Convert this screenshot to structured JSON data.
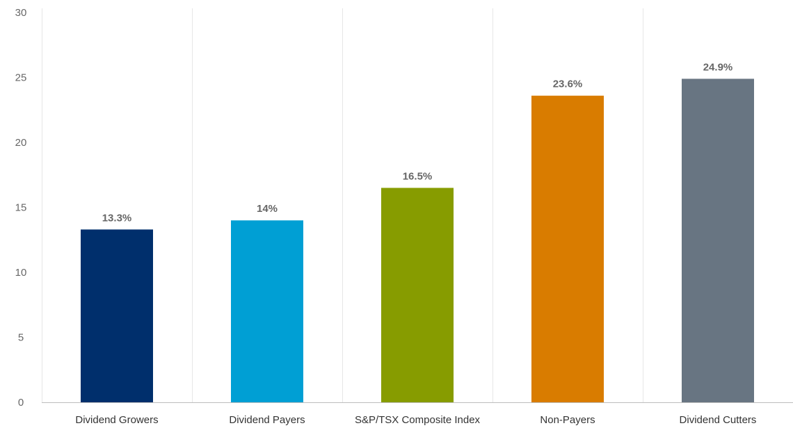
{
  "chart_data": {
    "type": "bar",
    "title": "",
    "xlabel": "",
    "ylabel": "",
    "categories": [
      "Dividend Growers",
      "Dividend Payers",
      "S&P/TSX Composite Index",
      "Non-Payers",
      "Dividend Cutters"
    ],
    "values": [
      13.3,
      14,
      16.5,
      23.6,
      24.9
    ],
    "data_labels": [
      "13.3%",
      "14%",
      "16.5%",
      "23.6%",
      "24.9%"
    ],
    "colors": [
      "#002f6c",
      "#009fd4",
      "#879c00",
      "#d97c00",
      "#687582"
    ],
    "ylim": [
      0,
      30
    ],
    "yticks": [
      0,
      5,
      10,
      15,
      20,
      25,
      30
    ],
    "grid": "vertical-category-separators",
    "legend": "none"
  }
}
